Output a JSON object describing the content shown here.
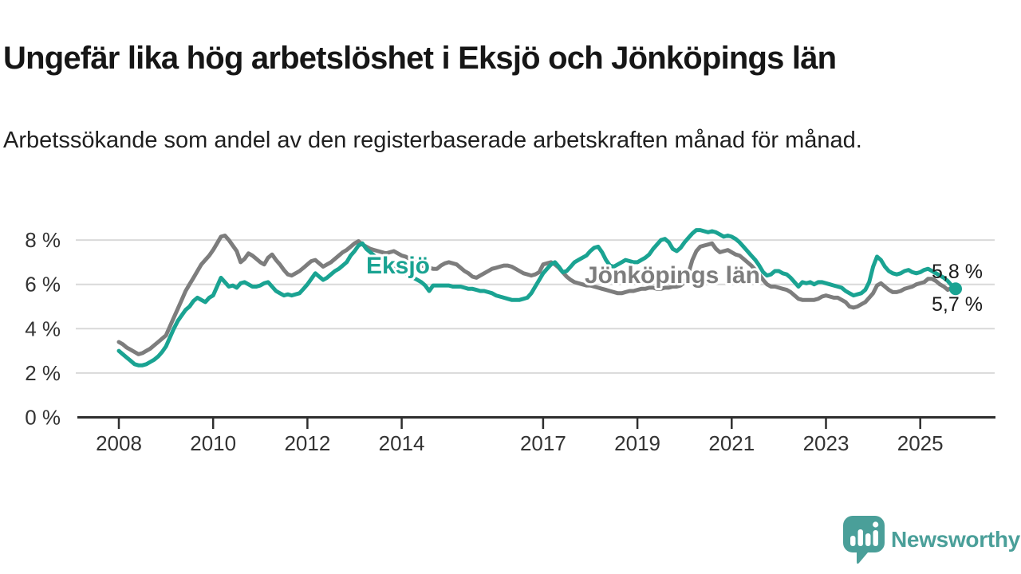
{
  "header": {
    "title": "Ungefär lika hög arbetslöshet i Eksjö och Jönköpings län",
    "subtitle": "Arbetssökande som andel av den registerbaserade arbetskraften månad för månad."
  },
  "chart_data": {
    "type": "line",
    "unit": "%",
    "x_start": "2008-01",
    "x_end": "2025-10",
    "grid": "horizontal-only",
    "x_tick_years": [
      2008,
      2010,
      2012,
      2014,
      2017,
      2019,
      2021,
      2023,
      2025
    ],
    "x_tick_labels": [
      "2008",
      "2010",
      "2012",
      "2014",
      "2017",
      "2019",
      "2021",
      "2023",
      "2025"
    ],
    "y_ticks": [
      0,
      2,
      4,
      6,
      8
    ],
    "y_tick_labels": [
      "0 %",
      "2 %",
      "4 %",
      "6 %",
      "8 %"
    ],
    "ylim": [
      0,
      8.8
    ],
    "series": [
      {
        "name": "Jönköpings län",
        "color": "#7d7d7d",
        "end_label": "5,7 %",
        "end_value": 5.7,
        "values": [
          3.4,
          3.3,
          3.15,
          3.05,
          2.95,
          2.85,
          2.9,
          3.0,
          3.1,
          3.25,
          3.4,
          3.55,
          3.7,
          4.1,
          4.5,
          4.9,
          5.3,
          5.7,
          6.0,
          6.3,
          6.6,
          6.9,
          7.1,
          7.3,
          7.55,
          7.85,
          8.15,
          8.2,
          8.0,
          7.75,
          7.5,
          7.0,
          7.15,
          7.4,
          7.3,
          7.15,
          7.0,
          6.9,
          7.2,
          7.35,
          7.1,
          6.9,
          6.65,
          6.45,
          6.4,
          6.5,
          6.6,
          6.75,
          6.9,
          7.05,
          7.1,
          6.95,
          6.8,
          6.9,
          7.0,
          7.15,
          7.3,
          7.45,
          7.55,
          7.7,
          7.85,
          7.95,
          7.8,
          7.7,
          7.6,
          7.55,
          7.5,
          7.45,
          7.4,
          7.45,
          7.5,
          7.4,
          7.3,
          7.25,
          7.15,
          7.05,
          6.95,
          6.85,
          6.8,
          6.75,
          6.7,
          6.7,
          6.85,
          6.95,
          7.0,
          6.95,
          6.9,
          6.75,
          6.6,
          6.5,
          6.35,
          6.3,
          6.4,
          6.5,
          6.6,
          6.7,
          6.75,
          6.8,
          6.85,
          6.85,
          6.8,
          6.7,
          6.6,
          6.5,
          6.45,
          6.4,
          6.45,
          6.55,
          6.9,
          6.95,
          7.0,
          6.9,
          6.75,
          6.55,
          6.35,
          6.2,
          6.1,
          6.05,
          6.0,
          5.95,
          5.95,
          5.9,
          5.85,
          5.8,
          5.75,
          5.7,
          5.65,
          5.6,
          5.6,
          5.65,
          5.7,
          5.7,
          5.75,
          5.8,
          5.8,
          5.85,
          5.85,
          5.8,
          5.8,
          5.85,
          5.85,
          5.9,
          5.9,
          5.95,
          6.1,
          6.5,
          7.1,
          7.5,
          7.7,
          7.75,
          7.8,
          7.85,
          7.6,
          7.45,
          7.5,
          7.55,
          7.45,
          7.35,
          7.3,
          7.15,
          7.0,
          6.85,
          6.65,
          6.45,
          6.2,
          6.0,
          5.9,
          5.9,
          5.85,
          5.8,
          5.75,
          5.65,
          5.5,
          5.35,
          5.3,
          5.3,
          5.3,
          5.3,
          5.35,
          5.45,
          5.5,
          5.45,
          5.4,
          5.4,
          5.3,
          5.2,
          5.0,
          4.95,
          5.0,
          5.1,
          5.2,
          5.4,
          5.6,
          5.95,
          6.05,
          5.9,
          5.75,
          5.65,
          5.65,
          5.7,
          5.8,
          5.85,
          5.9,
          6.0,
          6.05,
          6.1,
          6.25,
          6.25,
          6.15,
          6.0,
          5.9,
          5.75,
          5.85,
          5.7
        ]
      },
      {
        "name": "Eksjö",
        "color": "#1aa392",
        "end_label": "5,8 %",
        "end_value": 5.8,
        "end_dot": true,
        "values": [
          3.0,
          2.85,
          2.7,
          2.55,
          2.4,
          2.35,
          2.35,
          2.4,
          2.5,
          2.6,
          2.75,
          2.95,
          3.2,
          3.6,
          4.0,
          4.35,
          4.6,
          4.85,
          5.0,
          5.25,
          5.4,
          5.3,
          5.2,
          5.4,
          5.5,
          5.9,
          6.3,
          6.1,
          5.9,
          5.95,
          5.85,
          6.05,
          6.1,
          6.0,
          5.9,
          5.9,
          5.95,
          6.05,
          6.1,
          5.9,
          5.7,
          5.6,
          5.5,
          5.55,
          5.5,
          5.55,
          5.6,
          5.8,
          6.0,
          6.25,
          6.5,
          6.35,
          6.2,
          6.3,
          6.45,
          6.6,
          6.7,
          6.85,
          7.0,
          7.3,
          7.5,
          7.75,
          7.85,
          7.6,
          7.45,
          7.3,
          7.1,
          7.0,
          6.9,
          6.8,
          6.7,
          6.6,
          6.55,
          6.5,
          6.4,
          6.3,
          6.2,
          6.1,
          5.95,
          5.7,
          5.95,
          5.95,
          5.95,
          5.95,
          5.95,
          5.9,
          5.9,
          5.9,
          5.85,
          5.8,
          5.8,
          5.75,
          5.7,
          5.7,
          5.65,
          5.6,
          5.5,
          5.45,
          5.4,
          5.35,
          5.3,
          5.3,
          5.3,
          5.35,
          5.4,
          5.6,
          5.9,
          6.2,
          6.5,
          6.7,
          6.9,
          7.0,
          6.8,
          6.55,
          6.6,
          6.8,
          7.0,
          7.1,
          7.2,
          7.3,
          7.5,
          7.65,
          7.7,
          7.45,
          7.1,
          6.85,
          6.8,
          6.9,
          7.0,
          7.1,
          7.05,
          7.0,
          7.0,
          7.1,
          7.2,
          7.35,
          7.6,
          7.8,
          8.0,
          8.05,
          7.9,
          7.6,
          7.5,
          7.65,
          7.9,
          8.1,
          8.3,
          8.45,
          8.45,
          8.4,
          8.35,
          8.4,
          8.35,
          8.25,
          8.15,
          8.2,
          8.15,
          8.05,
          7.9,
          7.7,
          7.5,
          7.3,
          7.1,
          6.85,
          6.55,
          6.4,
          6.45,
          6.6,
          6.6,
          6.5,
          6.45,
          6.3,
          6.1,
          5.9,
          6.1,
          6.05,
          6.1,
          6.0,
          6.1,
          6.1,
          6.05,
          6.0,
          5.95,
          5.9,
          5.85,
          5.7,
          5.6,
          5.5,
          5.55,
          5.6,
          5.75,
          6.1,
          6.8,
          7.25,
          7.1,
          6.8,
          6.6,
          6.5,
          6.45,
          6.5,
          6.6,
          6.65,
          6.55,
          6.5,
          6.55,
          6.65,
          6.7,
          6.6,
          6.5,
          6.4,
          6.3,
          6.15,
          5.95,
          5.8
        ]
      }
    ]
  },
  "footer": {
    "brand": "Newsworthy"
  },
  "colors": {
    "eksjo_line": "#1aa392",
    "jonkoping_line": "#7d7d7d",
    "logo_teal": "#4a9f99",
    "gridline": "#d9d9d9",
    "axis": "#2e2e2e",
    "text": "#1a1a1a"
  }
}
